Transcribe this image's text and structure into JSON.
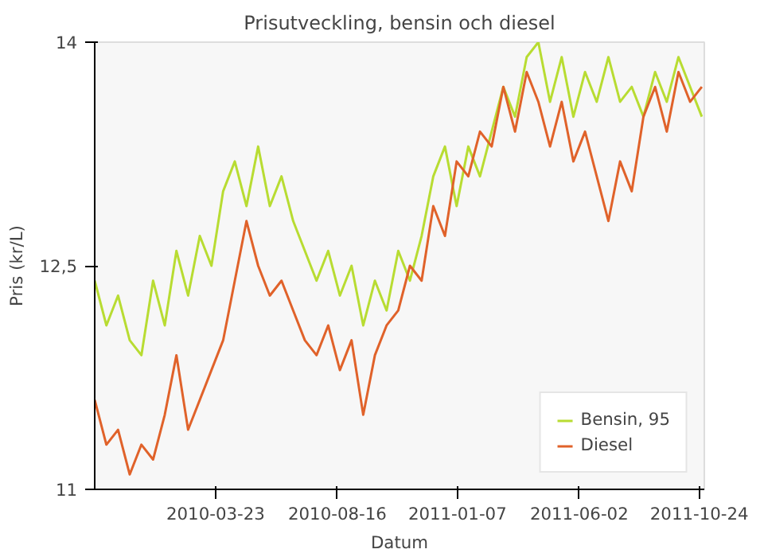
{
  "chart_data": {
    "type": "line",
    "title": "Prisutveckling, bensin och diesel",
    "xlabel": "Datum",
    "ylabel": "Pris (kr/L)",
    "x": [
      "2009-10-29",
      "2009-11-12",
      "2009-11-26",
      "2009-12-10",
      "2009-12-24",
      "2010-01-07",
      "2010-01-21",
      "2010-02-04",
      "2010-02-18",
      "2010-03-04",
      "2010-03-18",
      "2010-04-01",
      "2010-04-15",
      "2010-04-29",
      "2010-05-13",
      "2010-05-27",
      "2010-06-10",
      "2010-06-24",
      "2010-07-08",
      "2010-07-22",
      "2010-08-05",
      "2010-08-19",
      "2010-09-02",
      "2010-09-16",
      "2010-09-30",
      "2010-10-14",
      "2010-10-28",
      "2010-11-11",
      "2010-11-25",
      "2010-12-09",
      "2010-12-23",
      "2011-01-06",
      "2011-01-20",
      "2011-02-03",
      "2011-02-17",
      "2011-03-03",
      "2011-03-17",
      "2011-03-31",
      "2011-04-14",
      "2011-04-28",
      "2011-05-12",
      "2011-05-26",
      "2011-06-09",
      "2011-06-23",
      "2011-07-07",
      "2011-07-21",
      "2011-08-04",
      "2011-08-18",
      "2011-09-01",
      "2011-09-15",
      "2011-09-29",
      "2011-10-13",
      "2011-10-27"
    ],
    "series": [
      {
        "name": "Bensin, 95",
        "color": "#b8dc32",
        "values": [
          12.4,
          12.1,
          12.3,
          12.0,
          11.9,
          12.4,
          12.1,
          12.6,
          12.3,
          12.7,
          12.5,
          13.0,
          13.2,
          12.9,
          13.3,
          12.9,
          13.1,
          12.8,
          12.6,
          12.4,
          12.6,
          12.3,
          12.5,
          12.1,
          12.4,
          12.2,
          12.6,
          12.4,
          12.7,
          13.1,
          13.3,
          12.9,
          13.3,
          13.1,
          13.4,
          13.7,
          13.5,
          13.9,
          14.0,
          13.6,
          13.9,
          13.5,
          13.8,
          13.6,
          13.9,
          13.6,
          13.7,
          13.5,
          13.8,
          13.6,
          13.9,
          13.7,
          13.5
        ]
      },
      {
        "name": "Diesel",
        "color": "#e0622a",
        "values": [
          11.6,
          11.3,
          11.4,
          11.1,
          11.3,
          11.2,
          11.5,
          11.9,
          11.4,
          11.6,
          11.8,
          12.0,
          12.4,
          12.8,
          12.5,
          12.3,
          12.4,
          12.2,
          12.0,
          11.9,
          12.1,
          11.8,
          12.0,
          11.5,
          11.9,
          12.1,
          12.2,
          12.5,
          12.4,
          12.9,
          12.7,
          13.2,
          13.1,
          13.4,
          13.3,
          13.7,
          13.4,
          13.8,
          13.6,
          13.3,
          13.6,
          13.2,
          13.4,
          13.1,
          12.8,
          13.2,
          13.0,
          13.5,
          13.7,
          13.4,
          13.8,
          13.6,
          13.7
        ]
      }
    ],
    "xlim": [
      "2009-10-29",
      "2011-10-30"
    ],
    "xticks": [
      "2010-03-23",
      "2010-08-16",
      "2011-01-07",
      "2011-06-02",
      "2011-10-24"
    ],
    "ylim": [
      11,
      14
    ],
    "yticks": [
      11,
      {
        "value": 12.5,
        "label": "12,5"
      },
      14
    ],
    "legend": "bottom right",
    "grid": false,
    "marker": "none",
    "line_style": "solid"
  }
}
